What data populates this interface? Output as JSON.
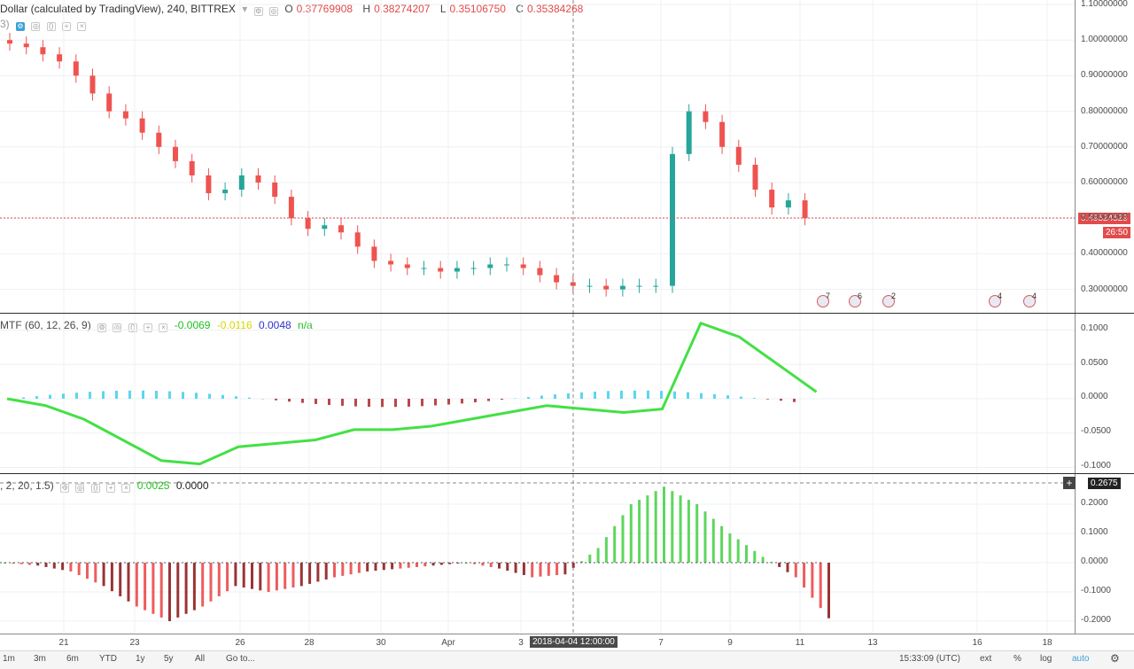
{
  "main_legend": {
    "title": "Dollar (calculated by TradingView), 240, BITTREX",
    "open_label": "O",
    "open": "0.37769908",
    "high_label": "H",
    "high": "0.38274207",
    "low_label": "L",
    "low": "0.35106750",
    "close_label": "C",
    "close": "0.35384268",
    "sub_label": "3)"
  },
  "macd_legend": {
    "title": "MTF (60, 12, 26, 9)",
    "v1": "-0.0069",
    "v2": "-0.0116",
    "v3": "0.0048",
    "v4": "n/a"
  },
  "osc_legend": {
    "title": ", 2, 20, 1.5)",
    "v1": "0.0025",
    "v2": "0.0000"
  },
  "price_axis": [
    "1.10000000",
    "1.00000000",
    "0.90000000",
    "0.80000000",
    "0.70000000",
    "0.60000000",
    "0.50000000",
    "0.40000000",
    "0.30000000"
  ],
  "price_badge": "0.49524529",
  "countdown_badge": "26:50",
  "macd_axis": [
    "0.1000",
    "0.0500",
    "0.0000",
    "-0.0500",
    "-0.1000"
  ],
  "osc_axis": [
    "0.2000",
    "0.1000",
    "0.0000",
    "-0.1000",
    "-0.2000"
  ],
  "osc_badge": "0.2675",
  "x_axis": [
    "21",
    "23",
    "26",
    "28",
    "30",
    "Apr",
    "3",
    "7",
    "9",
    "11",
    "13",
    "16",
    "18"
  ],
  "crosshair_label": "2018-04-04 12:00:00",
  "events": [
    "7",
    "6",
    "2",
    "4",
    "4"
  ],
  "bottom_bar": {
    "timeframes": [
      "1m",
      "3m",
      "6m",
      "YTD",
      "1y",
      "5y",
      "All"
    ],
    "goto": "Go to...",
    "clock": "15:33:09 (UTC)",
    "ext": "ext",
    "pct": "%",
    "log": "log",
    "auto": "auto"
  },
  "colors": {
    "up": "#26a69a",
    "down": "#ef5350",
    "bg": "#ffffff",
    "accent": "#3ca0d8"
  },
  "chart_data": {
    "type": "table",
    "candles_close_approx": [
      0.99,
      0.98,
      0.96,
      0.94,
      0.9,
      0.85,
      0.8,
      0.78,
      0.74,
      0.7,
      0.66,
      0.62,
      0.57,
      0.58,
      0.62,
      0.6,
      0.56,
      0.5,
      0.47,
      0.48,
      0.46,
      0.42,
      0.38,
      0.37,
      0.36,
      0.36,
      0.35,
      0.36,
      0.36,
      0.37,
      0.37,
      0.36,
      0.34,
      0.32,
      0.31,
      0.31,
      0.3,
      0.31,
      0.31,
      0.31,
      0.68,
      0.8,
      0.77,
      0.7,
      0.65,
      0.58,
      0.53,
      0.55,
      0.5
    ],
    "macd_line": [
      0.0,
      -0.01,
      -0.03,
      -0.06,
      -0.09,
      -0.095,
      -0.07,
      -0.065,
      -0.06,
      -0.045,
      -0.045,
      -0.04,
      -0.03,
      -0.02,
      -0.01,
      -0.015,
      -0.02,
      -0.015,
      0.11,
      0.09,
      0.05,
      0.01
    ],
    "osc_values": [
      0,
      -0.01,
      -0.03,
      -0.08,
      -0.15,
      -0.2,
      -0.15,
      -0.08,
      -0.1,
      -0.08,
      -0.05,
      -0.03,
      -0.02,
      -0.01,
      0,
      -0.02,
      -0.05,
      -0.04,
      0.05,
      0.2,
      0.26,
      0.2,
      0.1,
      0.02,
      -0.05,
      -0.19
    ]
  }
}
